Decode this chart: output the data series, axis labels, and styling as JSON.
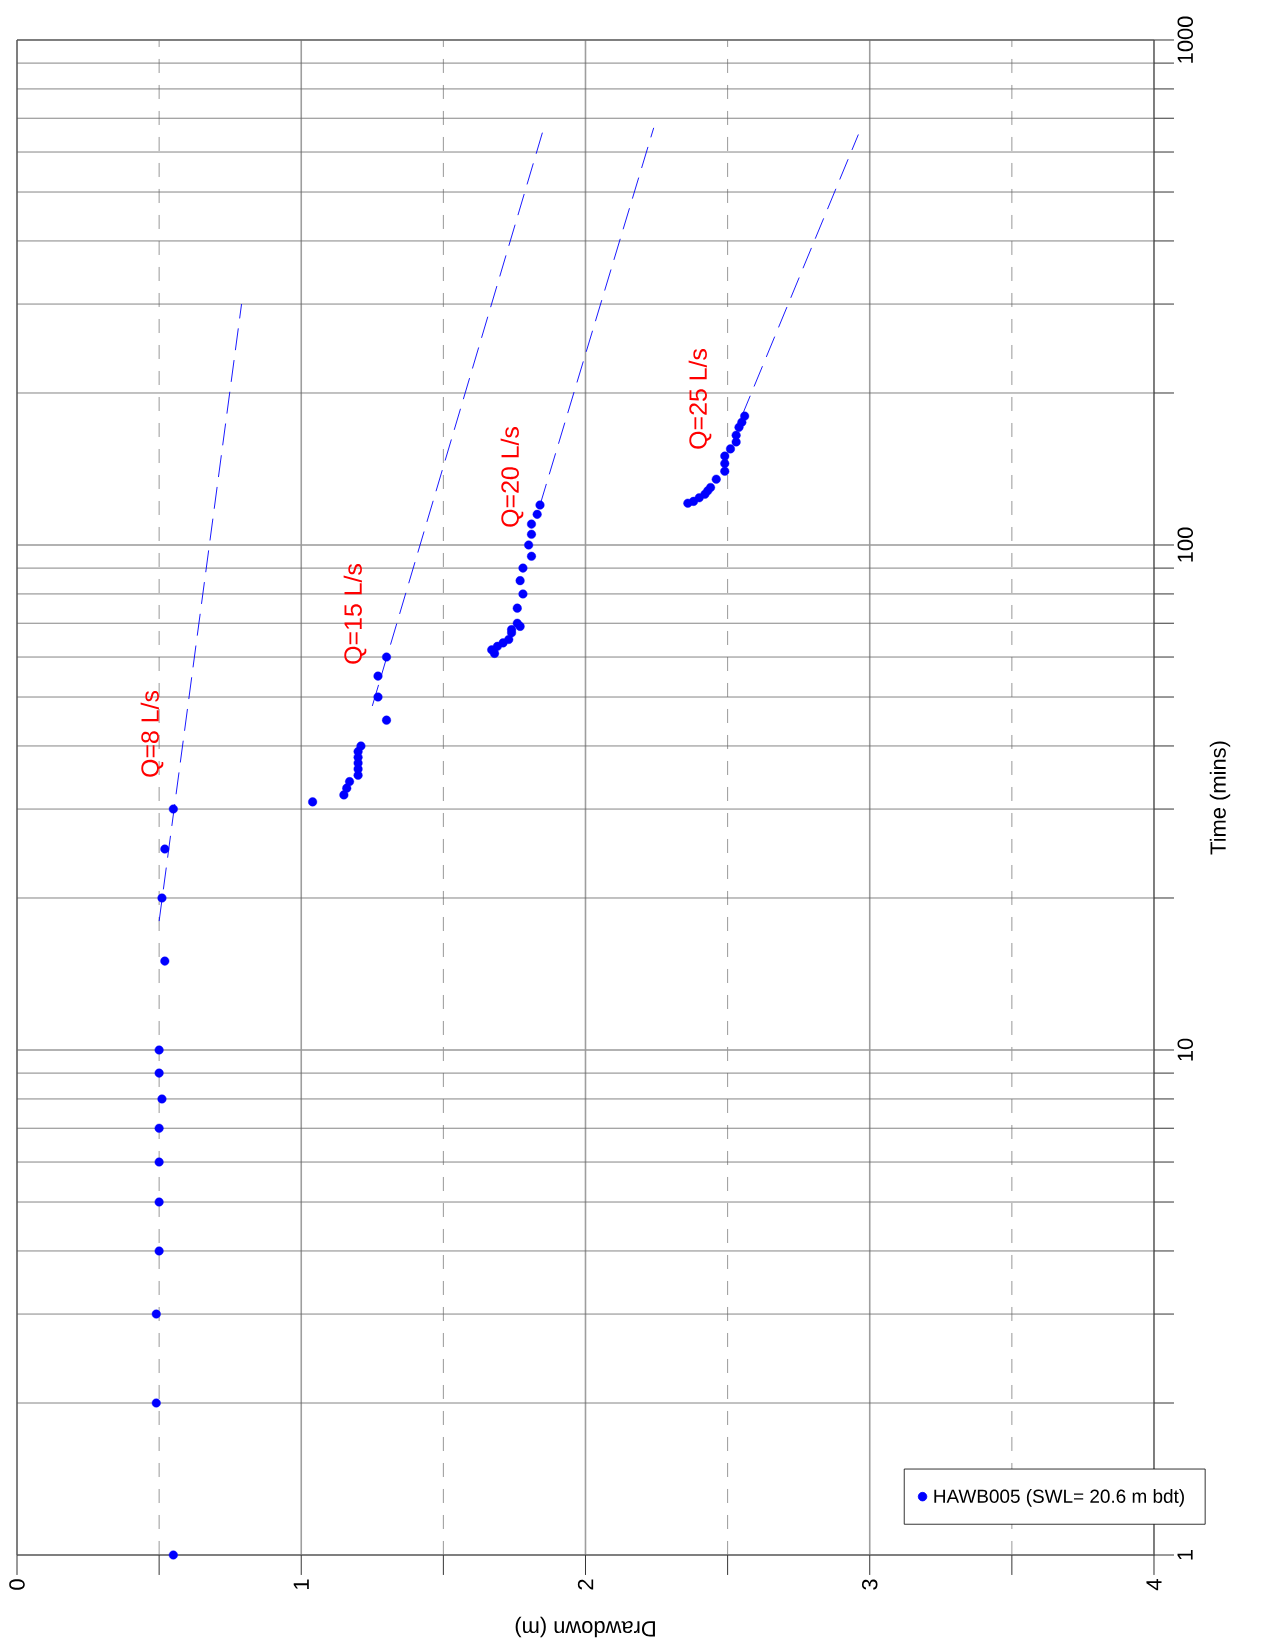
{
  "chart_data": {
    "type": "scatter",
    "xlabel": "Drawdown (m)",
    "ylabel": "Time (mins)",
    "log": "y",
    "xlim": [
      0,
      4
    ],
    "ylim": [
      1,
      1000
    ],
    "xticks": [
      0,
      {
        "value": 0.5,
        "label": null
      },
      1,
      {
        "value": 1.5,
        "label": null
      },
      2,
      {
        "value": 2.5,
        "label": null
      },
      3,
      {
        "value": 3.5,
        "label": null
      },
      4
    ],
    "yticks": [
      1,
      {
        "value": 2,
        "label": null
      },
      {
        "value": 3,
        "label": null
      },
      {
        "value": 4,
        "label": null
      },
      {
        "value": 5,
        "label": null
      },
      {
        "value": 6,
        "label": null
      },
      {
        "value": 7,
        "label": null
      },
      {
        "value": 8,
        "label": null
      },
      {
        "value": 9,
        "label": null
      },
      10,
      {
        "value": 20,
        "label": null
      },
      {
        "value": 30,
        "label": null
      },
      {
        "value": 40,
        "label": null
      },
      {
        "value": 50,
        "label": null
      },
      {
        "value": 60,
        "label": null
      },
      {
        "value": 70,
        "label": null
      },
      {
        "value": 80,
        "label": null
      },
      {
        "value": 90,
        "label": null
      },
      100,
      {
        "value": 200,
        "label": null
      },
      {
        "value": 300,
        "label": null
      },
      {
        "value": 400,
        "label": null
      },
      {
        "value": 500,
        "label": null
      },
      {
        "value": 600,
        "label": null
      },
      {
        "value": 700,
        "label": null
      },
      {
        "value": 800,
        "label": null
      },
      {
        "value": 900,
        "label": null
      },
      1000
    ],
    "grid": true,
    "legend": "bottom right",
    "marker": "circle",
    "annotations": [
      "Q=8 L/s",
      "Q=15 L/s",
      "Q=20 L/s",
      "Q=25 L/s"
    ],
    "series": [
      {
        "name": "HAWB005 (SWL= 20.6 m bdt)",
        "color": "#0000ff",
        "x": [
          0.55,
          0.49,
          0.49,
          0.5,
          0.5,
          0.5,
          0.5,
          0.51,
          0.5,
          0.5,
          0.52,
          0.51,
          0.52,
          0.55,
          1.04,
          1.15,
          1.16,
          1.17,
          1.2,
          1.2,
          1.2,
          1.2,
          1.2,
          1.21,
          1.3,
          1.27,
          1.27,
          1.3,
          1.68,
          1.67,
          1.69,
          1.71,
          1.73,
          1.74,
          1.74,
          1.77,
          1.76,
          1.76,
          1.78,
          1.77,
          1.78,
          1.81,
          1.8,
          1.81,
          1.81,
          1.83,
          1.84,
          2.36,
          2.38,
          2.4,
          2.42,
          2.43,
          2.44,
          2.46,
          2.49,
          2.49,
          2.49,
          2.51,
          2.53,
          2.53,
          2.54,
          2.55,
          2.56
        ],
        "values": [
          1,
          2,
          3,
          4,
          5,
          6,
          7,
          8,
          9,
          10,
          15,
          20,
          25,
          30,
          31,
          32,
          33,
          34,
          35,
          36,
          37,
          38,
          39,
          40,
          45,
          50,
          55,
          60,
          61,
          62,
          63,
          64,
          65,
          67,
          68,
          69,
          70,
          75,
          80,
          85,
          90,
          95,
          100,
          105,
          110,
          115,
          120,
          121,
          122,
          124,
          126,
          128,
          130,
          135,
          140,
          145,
          150,
          155,
          160,
          165,
          171,
          175,
          180
        ]
      },
      {
        "type": "line",
        "color": "#0000ff",
        "line_style": "dashed",
        "marker": "none",
        "x": [
          0.5,
          0.79
        ],
        "values": [
          18,
          300
        ]
      },
      {
        "type": "line",
        "color": "#0000ff",
        "line_style": "dashed",
        "marker": "none",
        "x": [
          1.25,
          1.85
        ],
        "values": [
          48,
          660
        ]
      },
      {
        "type": "line",
        "color": "#0000ff",
        "line_style": "dashed",
        "marker": "none",
        "x": [
          1.84,
          2.24
        ],
        "values": [
          120,
          670
        ]
      },
      {
        "type": "line",
        "color": "#0000ff",
        "line_style": "dashed",
        "marker": "none",
        "x": [
          2.55,
          2.96
        ],
        "values": [
          180,
          650
        ]
      }
    ]
  }
}
